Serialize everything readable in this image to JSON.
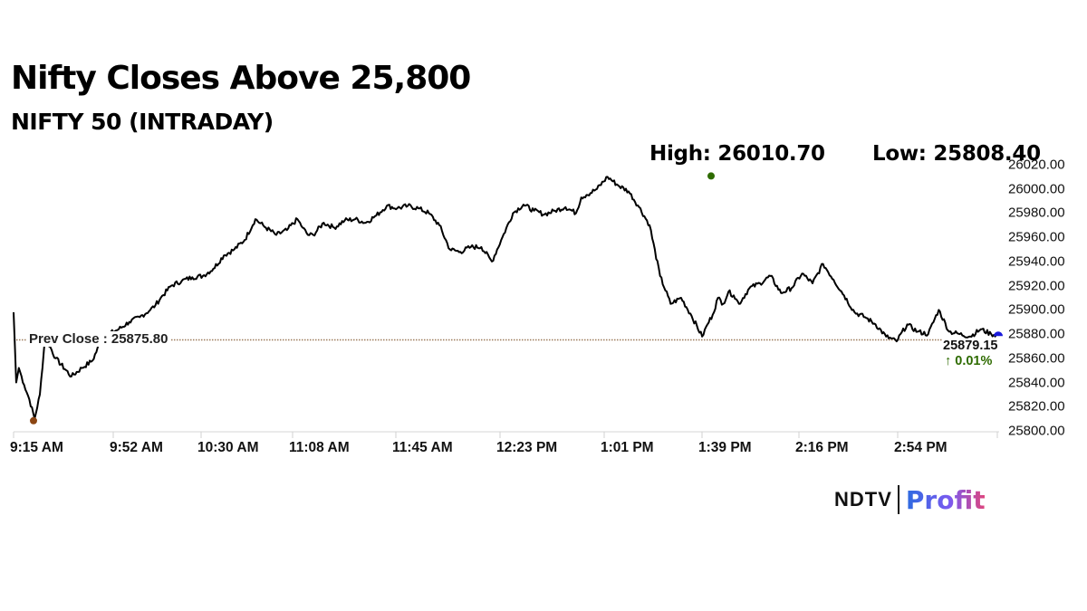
{
  "header": {
    "title": "Nifty Closes Above 25,800",
    "subtitle": "NIFTY 50 (INTRADAY)",
    "high_label": "High: 26010.70",
    "low_label": "Low: 25808.40"
  },
  "annotations": {
    "prev_close_label": "Prev Close : 25875.80",
    "last_price": "25879.15",
    "last_change": "↑ 0.01%",
    "high_marker_color": "#2e6b00",
    "low_marker_color": "#8b4513",
    "last_marker_color": "#1a1adb",
    "prev_close_line_color": "#9c7b5a"
  },
  "branding": {
    "ndtv": "NDTV",
    "profit": "Profit"
  },
  "chart_data": {
    "type": "line",
    "title": "Nifty Closes Above 25,800",
    "subtitle": "NIFTY 50 (INTRADAY)",
    "xlabel": "",
    "ylabel": "",
    "ylim": [
      25800,
      26020
    ],
    "y_ticks": [
      "26020.00",
      "26000.00",
      "25980.00",
      "25960.00",
      "25940.00",
      "25920.00",
      "25900.00",
      "25880.00",
      "25860.00",
      "25840.00",
      "25820.00",
      "25800.00"
    ],
    "x_ticks": [
      "9:15 AM",
      "9:52 AM",
      "10:30 AM",
      "11:08 AM",
      "11:45 AM",
      "12:23 PM",
      "1:01 PM",
      "1:39 PM",
      "2:16 PM",
      "2:54 PM"
    ],
    "grid": false,
    "legend": null,
    "high": 26010.7,
    "low": 25808.4,
    "prev_close": 25875.8,
    "last": 25879.15,
    "change_pct": 0.01,
    "series": [
      {
        "name": "NIFTY 50",
        "x_minutes_from_915": [
          0,
          1,
          2,
          4,
          6,
          8,
          10,
          12,
          16,
          22,
          26,
          30,
          34,
          40,
          44,
          48,
          52,
          54,
          56,
          60,
          64,
          68,
          72,
          76,
          80,
          84,
          88,
          92,
          96,
          100,
          104,
          108,
          110,
          112,
          114,
          118,
          122,
          126,
          130,
          134,
          138,
          142,
          146,
          150,
          154,
          158,
          162,
          166,
          170,
          174,
          178,
          182,
          186,
          190,
          194,
          198,
          202,
          206,
          210,
          214,
          216,
          218,
          222,
          226,
          230,
          234,
          238,
          242,
          246,
          250,
          254,
          258,
          262,
          264,
          266,
          268,
          270,
          272,
          274,
          276,
          280,
          284,
          288,
          292,
          296,
          300,
          304,
          308,
          312,
          316,
          320,
          324,
          328,
          332,
          336,
          340,
          344,
          348,
          352,
          356,
          360,
          364,
          368,
          372,
          375
        ],
        "values": [
          25898,
          25840,
          25852,
          25838,
          25826,
          25810,
          25830,
          25878,
          25860,
          25845,
          25852,
          25858,
          25878,
          25884,
          25890,
          25894,
          25900,
          25904,
          25910,
          25920,
          25924,
          25927,
          25928,
          25934,
          25945,
          25950,
          25958,
          25975,
          25968,
          25962,
          25966,
          25975,
          25968,
          25962,
          25962,
          25972,
          25968,
          25974,
          25975,
          25972,
          25978,
          25986,
          25984,
          25986,
          25984,
          25980,
          25970,
          25950,
          25948,
          25952,
          25952,
          25940,
          25960,
          25980,
          25987,
          25982,
          25979,
          25982,
          25985,
          25980,
          25993,
          25995,
          26000,
          26010,
          26003,
          25998,
          25985,
          25970,
          25928,
          25905,
          25910,
          25895,
          25878,
          25888,
          25896,
          25910,
          25905,
          25915,
          25912,
          25905,
          25918,
          25922,
          25928,
          25914,
          25918,
          25930,
          25922,
          25938,
          25925,
          25912,
          25898,
          25894,
          25888,
          25878,
          25874,
          25888,
          25882,
          25880,
          25900,
          25882,
          25880,
          25878,
          25884,
          25880,
          25879.15
        ]
      }
    ]
  }
}
